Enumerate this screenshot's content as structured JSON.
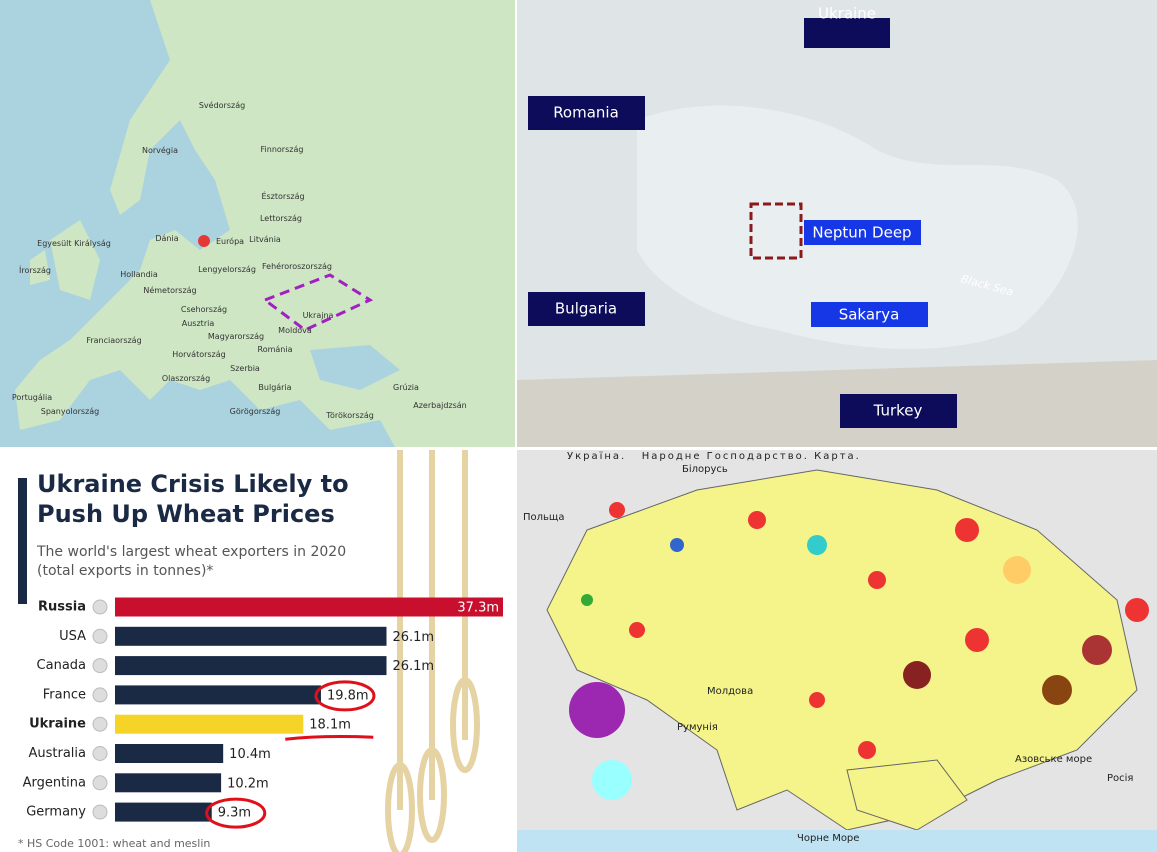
{
  "europe_map": {
    "labels": [
      "Norvégia",
      "Svédország",
      "Finnország",
      "Észtország",
      "Lettország",
      "Litvánia",
      "Dánia",
      "Egyesült Királyság",
      "Írország",
      "Hollandia",
      "Németország",
      "Lengyelország",
      "Fehéroroszország",
      "Ukrajna",
      "Csehország",
      "Franciaország",
      "Ausztria",
      "Magyarország",
      "Moldova",
      "Románia",
      "Horvátország",
      "Olaszország",
      "Szerbia",
      "Bulgária",
      "Spanyolország",
      "Portugália",
      "Görögország",
      "Törökország",
      "Grúzia",
      "Azerbajdzsán",
      "Európa"
    ]
  },
  "black_sea_map": {
    "labels": [
      "Ukraine",
      "Romania",
      "Neptun Deep",
      "Bulgaria",
      "Sakarya",
      "Turkey",
      "Black Sea"
    ]
  },
  "chart_data": {
    "type": "bar",
    "orientation": "horizontal",
    "title": "Ukraine Crisis Likely to Push Up Wheat Prices",
    "subtitle": "The world's largest wheat exporters in 2020 (total exports in tonnes)*",
    "categories": [
      "Russia",
      "USA",
      "Canada",
      "France",
      "Ukraine",
      "Australia",
      "Argentina",
      "Germany"
    ],
    "values": [
      37.3,
      26.1,
      26.1,
      19.8,
      18.1,
      10.4,
      10.2,
      9.3
    ],
    "value_labels": [
      "37.3m",
      "26.1m",
      "26.1m",
      "19.8m",
      "18.1m",
      "10.4m",
      "10.2m",
      "9.3m"
    ],
    "colors": [
      "#c8102e",
      "#1b2a44",
      "#1b2a44",
      "#1b2a44",
      "#f5d327",
      "#1b2a44",
      "#1b2a44",
      "#1b2a44"
    ],
    "footnote": "* HS Code 1001: wheat and meslin"
  },
  "ukraine_map": {
    "title": "Україна.   Народне Господарство. Карта.",
    "labels": [
      "Білорусь",
      "Польща",
      "Молдова",
      "Румунія",
      "Азовське море",
      "Росія",
      "Чорне Море"
    ]
  }
}
